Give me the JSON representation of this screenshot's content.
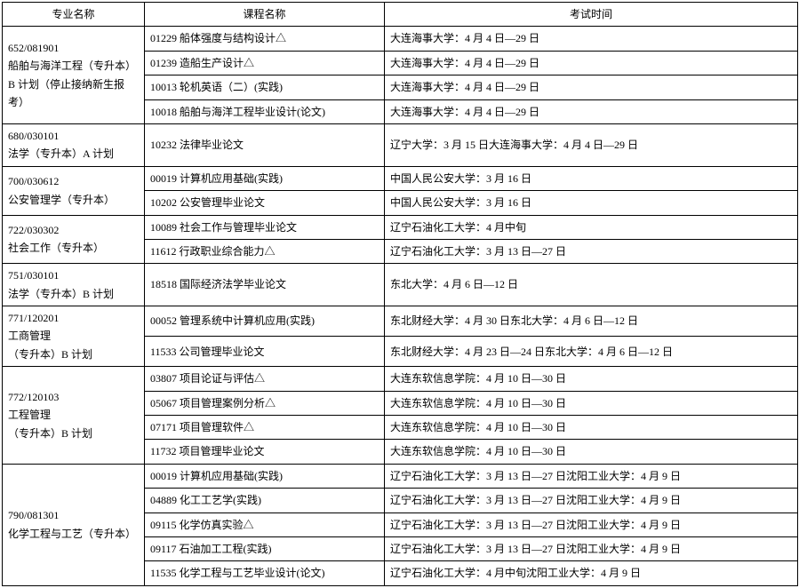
{
  "headers": [
    "专业名称",
    "课程名称",
    "考试时间"
  ],
  "rows": [
    {
      "major": "652/081901\n船舶与海洋工程（专升本）B 计划（停止接纳新生报考）",
      "courses": [
        {
          "code": "01229",
          "name": "船体强度与结构设计△",
          "exam": "大连海事大学：4 月 4 日—29 日"
        },
        {
          "code": "01239",
          "name": "造船生产设计△",
          "exam": "大连海事大学：4 月 4 日—29 日"
        },
        {
          "code": "10013",
          "name": "轮机英语（二）(实践)",
          "exam": "大连海事大学：4 月 4 日—29 日"
        },
        {
          "code": "10018",
          "name": "船舶与海洋工程毕业设计(论文)",
          "exam": "大连海事大学：4 月 4 日—29 日"
        }
      ]
    },
    {
      "major": "680/030101\n法学（专升本）A 计划",
      "courses": [
        {
          "code": "10232",
          "name": "法律毕业论文",
          "exam": "辽宁大学：3 月 15 日大连海事大学：4 月 4 日—29 日"
        }
      ]
    },
    {
      "major": "700/030612\n公安管理学（专升本）",
      "courses": [
        {
          "code": "00019",
          "name": "计算机应用基础(实践)",
          "exam": "中国人民公安大学：3 月 16 日"
        },
        {
          "code": "10202",
          "name": "公安管理毕业论文",
          "exam": "中国人民公安大学：3 月 16 日"
        }
      ]
    },
    {
      "major": "722/030302\n社会工作（专升本）",
      "courses": [
        {
          "code": "10089",
          "name": "社会工作与管理毕业论文",
          "exam": "辽宁石油化工大学：4 月中旬"
        },
        {
          "code": "11612",
          "name": "行政职业综合能力△",
          "exam": "辽宁石油化工大学：3 月 13 日—27 日"
        }
      ]
    },
    {
      "major": "751/030101\n法学（专升本）B 计划",
      "courses": [
        {
          "code": "18518",
          "name": "国际经济法学毕业论文",
          "exam": "东北大学：4 月 6 日—12 日"
        }
      ]
    },
    {
      "major": "771/120201\n工商管理\n（专升本）B 计划",
      "courses": [
        {
          "code": "00052",
          "name": "管理系统中计算机应用(实践)",
          "exam": "东北财经大学：4 月 30 日东北大学：4 月 6 日—12 日"
        },
        {
          "code": "11533",
          "name": "公司管理毕业论文",
          "exam": "东北财经大学：4 月 23 日—24 日东北大学：4 月 6 日—12 日"
        }
      ]
    },
    {
      "major": "772/120103\n工程管理\n（专升本）B 计划",
      "courses": [
        {
          "code": "03807",
          "name": "项目论证与评估△",
          "exam": "大连东软信息学院：4 月 10 日—30 日"
        },
        {
          "code": "05067",
          "name": "项目管理案例分析△",
          "exam": "大连东软信息学院：4 月 10 日—30 日"
        },
        {
          "code": "07171",
          "name": "项目管理软件△",
          "exam": "大连东软信息学院：4 月 10 日—30 日"
        },
        {
          "code": "11732",
          "name": "项目管理毕业论文",
          "exam": "大连东软信息学院：4 月 10 日—30 日"
        }
      ]
    },
    {
      "major": "790/081301\n化学工程与工艺（专升本）",
      "courses": [
        {
          "code": "00019",
          "name": "计算机应用基础(实践)",
          "exam": "辽宁石油化工大学：3 月 13 日—27 日沈阳工业大学：4 月 9 日"
        },
        {
          "code": "04889",
          "name": "化工工艺学(实践)",
          "exam": "辽宁石油化工大学：3 月 13 日—27 日沈阳工业大学：4 月 9 日"
        },
        {
          "code": "09115",
          "name": "化学仿真实验△",
          "exam": "辽宁石油化工大学：3 月 13 日—27 日沈阳工业大学：4 月 9 日"
        },
        {
          "code": "09117",
          "name": "石油加工工程(实践)",
          "exam": "辽宁石油化工大学：3 月 13 日—27 日沈阳工业大学：4 月 9 日"
        },
        {
          "code": "11535",
          "name": "化学工程与工艺毕业设计(论文)",
          "exam": "辽宁石油化工大学：4 月中旬沈阳工业大学：4 月 9 日"
        }
      ]
    }
  ]
}
